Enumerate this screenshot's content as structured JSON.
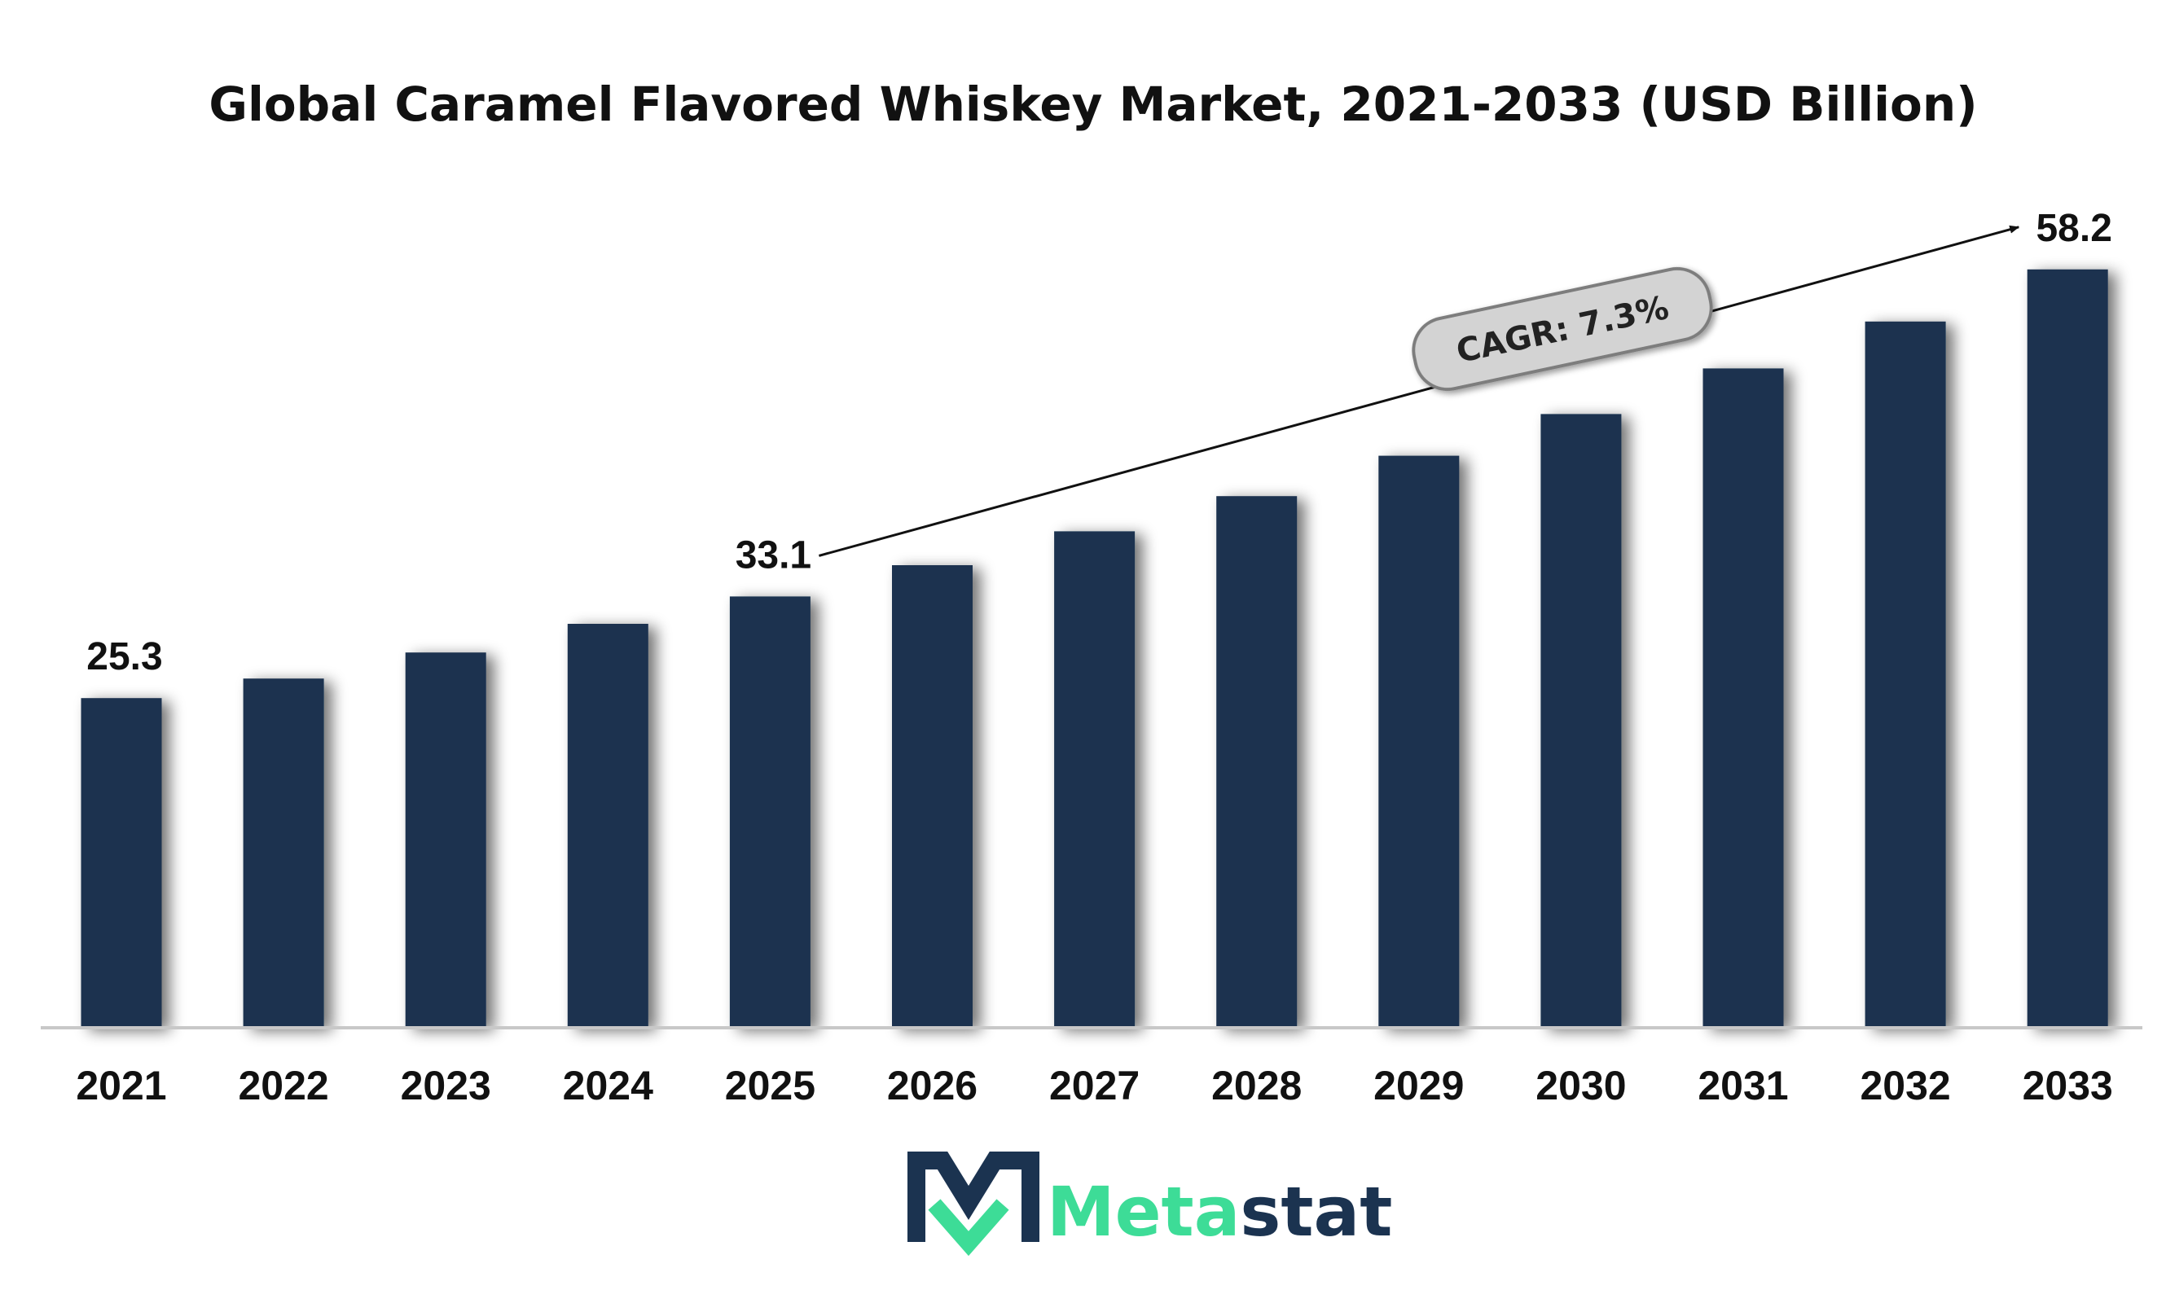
{
  "chart_data": {
    "type": "bar",
    "title": "Global Caramel Flavored Whiskey Market, 2021-2033 (USD Billion)",
    "categories": [
      "2021",
      "2022",
      "2023",
      "2024",
      "2025",
      "2026",
      "2027",
      "2028",
      "2029",
      "2030",
      "2031",
      "2032",
      "2033"
    ],
    "values": [
      25.3,
      26.8,
      28.8,
      31.0,
      33.1,
      35.5,
      38.1,
      40.8,
      43.9,
      47.1,
      50.6,
      54.2,
      58.2
    ],
    "data_labels": {
      "0": "25.3",
      "4": "33.1",
      "12": "58.2"
    },
    "ylim": [
      0,
      62
    ],
    "grid": false,
    "bar_color": "#1b3350",
    "annotation": {
      "text": "CAGR: 7.3%",
      "from_index": 4,
      "to_index": 12
    }
  },
  "brand": {
    "name_part1": "Meta",
    "name_part2": "stat",
    "color_part1": "#3ddc97",
    "color_part2": "#1b3350"
  }
}
